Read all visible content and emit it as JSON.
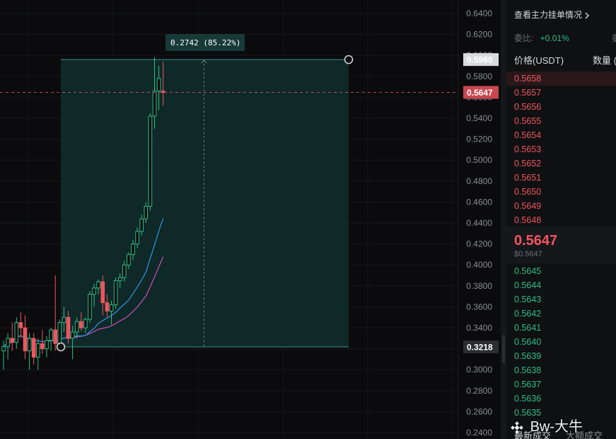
{
  "price_axis": {
    "labels": [
      "0.6400",
      "0.6200",
      "0.6000",
      "0.5800",
      "0.5600",
      "0.5400",
      "0.5200",
      "0.5000",
      "0.4800",
      "0.4600",
      "0.4400",
      "0.4200",
      "0.4000",
      "0.3800",
      "0.3600",
      "0.3400",
      "0.3200",
      "0.3000",
      "0.2800",
      "0.2600",
      "0.2400"
    ],
    "values": [
      0.64,
      0.62,
      0.6,
      0.58,
      0.56,
      0.54,
      0.52,
      0.5,
      0.48,
      0.46,
      0.44,
      0.42,
      0.4,
      0.38,
      0.36,
      0.34,
      0.32,
      0.3,
      0.28,
      0.26,
      0.24
    ],
    "min": 0.24,
    "max": 0.64
  },
  "measure_tool": {
    "tooltip": "0.2742 (85.22%)",
    "top_price": 0.596,
    "bottom_price": 0.3218,
    "top_label": "0.5960",
    "bottom_label": "0.3218"
  },
  "current_price": {
    "label": "0.5647",
    "value": 0.5647
  },
  "candles": [
    {
      "o": 0.318,
      "h": 0.328,
      "l": 0.3,
      "c": 0.322
    },
    {
      "o": 0.322,
      "h": 0.335,
      "l": 0.31,
      "c": 0.33
    },
    {
      "o": 0.33,
      "h": 0.345,
      "l": 0.318,
      "c": 0.326
    },
    {
      "o": 0.326,
      "h": 0.35,
      "l": 0.32,
      "c": 0.345
    },
    {
      "o": 0.345,
      "h": 0.355,
      "l": 0.33,
      "c": 0.34
    },
    {
      "o": 0.34,
      "h": 0.352,
      "l": 0.31,
      "c": 0.318
    },
    {
      "o": 0.318,
      "h": 0.335,
      "l": 0.3,
      "c": 0.33
    },
    {
      "o": 0.33,
      "h": 0.335,
      "l": 0.305,
      "c": 0.312
    },
    {
      "o": 0.312,
      "h": 0.33,
      "l": 0.3,
      "c": 0.325
    },
    {
      "o": 0.325,
      "h": 0.338,
      "l": 0.315,
      "c": 0.32
    },
    {
      "o": 0.32,
      "h": 0.332,
      "l": 0.312,
      "c": 0.328
    },
    {
      "o": 0.328,
      "h": 0.34,
      "l": 0.318,
      "c": 0.338
    },
    {
      "o": 0.338,
      "h": 0.39,
      "l": 0.318,
      "c": 0.325
    },
    {
      "o": 0.325,
      "h": 0.348,
      "l": 0.318,
      "c": 0.345
    },
    {
      "o": 0.345,
      "h": 0.36,
      "l": 0.336,
      "c": 0.35
    },
    {
      "o": 0.35,
      "h": 0.356,
      "l": 0.325,
      "c": 0.33
    },
    {
      "o": 0.33,
      "h": 0.342,
      "l": 0.31,
      "c": 0.336
    },
    {
      "o": 0.336,
      "h": 0.35,
      "l": 0.33,
      "c": 0.346
    },
    {
      "o": 0.346,
      "h": 0.355,
      "l": 0.337,
      "c": 0.34
    },
    {
      "o": 0.34,
      "h": 0.35,
      "l": 0.335,
      "c": 0.348
    },
    {
      "o": 0.348,
      "h": 0.375,
      "l": 0.345,
      "c": 0.372
    },
    {
      "o": 0.372,
      "h": 0.382,
      "l": 0.36,
      "c": 0.378
    },
    {
      "o": 0.378,
      "h": 0.386,
      "l": 0.372,
      "c": 0.384
    },
    {
      "o": 0.384,
      "h": 0.39,
      "l": 0.352,
      "c": 0.364
    },
    {
      "o": 0.364,
      "h": 0.372,
      "l": 0.35,
      "c": 0.356
    },
    {
      "o": 0.356,
      "h": 0.366,
      "l": 0.343,
      "c": 0.362
    },
    {
      "o": 0.362,
      "h": 0.388,
      "l": 0.358,
      "c": 0.385
    },
    {
      "o": 0.385,
      "h": 0.392,
      "l": 0.378,
      "c": 0.388
    },
    {
      "o": 0.388,
      "h": 0.404,
      "l": 0.384,
      "c": 0.4
    },
    {
      "o": 0.4,
      "h": 0.412,
      "l": 0.396,
      "c": 0.41
    },
    {
      "o": 0.41,
      "h": 0.424,
      "l": 0.405,
      "c": 0.42
    },
    {
      "o": 0.42,
      "h": 0.436,
      "l": 0.416,
      "c": 0.432
    },
    {
      "o": 0.432,
      "h": 0.448,
      "l": 0.428,
      "c": 0.444
    },
    {
      "o": 0.444,
      "h": 0.46,
      "l": 0.44,
      "c": 0.456
    },
    {
      "o": 0.456,
      "h": 0.545,
      "l": 0.452,
      "c": 0.542
    },
    {
      "o": 0.542,
      "h": 0.598,
      "l": 0.53,
      "c": 0.566
    },
    {
      "o": 0.566,
      "h": 0.59,
      "l": 0.548,
      "c": 0.578
    },
    {
      "o": 0.566,
      "h": 0.594,
      "l": 0.552,
      "c": 0.5647
    }
  ],
  "order_book": {
    "link_text": "查看主力挂单情况",
    "ratio_label": "委比:",
    "ratio_value": "+0.01%",
    "ratio_label_2": "委",
    "col_price": "价格(USDT)",
    "col_qty": "数量 (",
    "asks": [
      "0.5658",
      "0.5657",
      "0.5656",
      "0.5655",
      "0.5654",
      "0.5653",
      "0.5652",
      "0.5651",
      "0.5650",
      "0.5649",
      "0.5648"
    ],
    "last_price": "0.5647",
    "last_price_usd": "$0.5647",
    "bids": [
      "0.5645",
      "0.5644",
      "0.5643",
      "0.5642",
      "0.5641",
      "0.5640",
      "0.5639",
      "0.5638",
      "0.5637",
      "0.5636",
      "0.5635"
    ],
    "tab_latest": "最新成交",
    "tab_large": "大额成交"
  },
  "watermark": "Bw-大牛",
  "colors": {
    "up": "#2ebd85",
    "down": "#f0555f",
    "measure_fill": "#0f2b2b",
    "measure_border": "#1f5f5c",
    "ma_pink": "#c54db5",
    "ma_blue": "#2f8fd8"
  }
}
